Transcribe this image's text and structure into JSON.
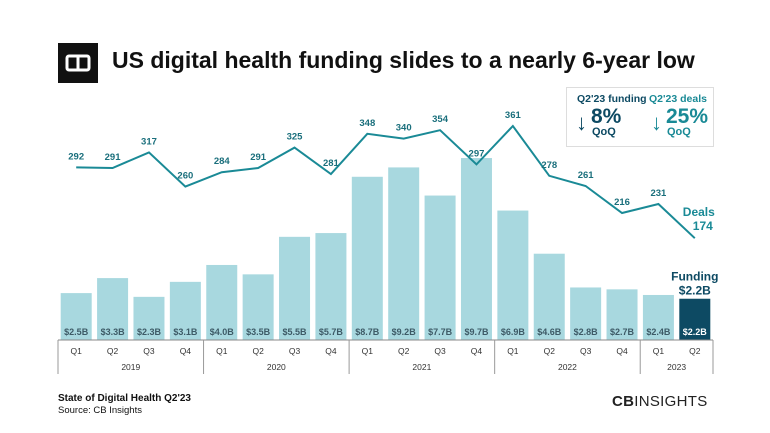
{
  "title": "US digital health funding slides to a nearly 6-year low",
  "kpis": {
    "funding": {
      "label": "Q2'23 funding",
      "value": "8%",
      "unit": "QoQ",
      "direction": "down",
      "color": "#0d4a63"
    },
    "deals": {
      "label": "Q2'23 deals",
      "value": "25%",
      "unit": "QoQ",
      "direction": "down",
      "color": "#1a8a96"
    }
  },
  "footer": {
    "report": "State of Digital Health Q2'23",
    "source": "Source: CB Insights",
    "brand_bold": "CB",
    "brand_rest": "INSIGHTS"
  },
  "chart_data": {
    "type": "bar+line",
    "categories": [
      "Q1",
      "Q2",
      "Q3",
      "Q4",
      "Q1",
      "Q2",
      "Q3",
      "Q4",
      "Q1",
      "Q2",
      "Q3",
      "Q4",
      "Q1",
      "Q2",
      "Q3",
      "Q4",
      "Q1",
      "Q2"
    ],
    "years": [
      {
        "label": "2019",
        "span": 4
      },
      {
        "label": "2020",
        "span": 4
      },
      {
        "label": "2021",
        "span": 4
      },
      {
        "label": "2022",
        "span": 4
      },
      {
        "label": "2023",
        "span": 2
      }
    ],
    "series": [
      {
        "name": "Funding",
        "type": "bar",
        "unit": "$B",
        "values": [
          2.5,
          3.3,
          2.3,
          3.1,
          4.0,
          3.5,
          5.5,
          5.7,
          8.7,
          9.2,
          7.7,
          9.7,
          6.9,
          4.6,
          2.8,
          2.7,
          2.4,
          2.2
        ],
        "labels": [
          "$2.5B",
          "$3.3B",
          "$2.3B",
          "$3.1B",
          "$4.0B",
          "$3.5B",
          "$5.5B",
          "$5.7B",
          "$8.7B",
          "$9.2B",
          "$7.7B",
          "$9.7B",
          "$6.9B",
          "$4.6B",
          "$2.8B",
          "$2.7B",
          "$2.4B",
          "$2.2B"
        ],
        "end_label": "Funding",
        "end_value": "$2.2B",
        "color": "#a8d8df",
        "highlight_color": "#0d4a63"
      },
      {
        "name": "Deals",
        "type": "line",
        "values": [
          292,
          291,
          317,
          260,
          284,
          291,
          325,
          281,
          348,
          340,
          354,
          297,
          361,
          278,
          261,
          216,
          231,
          174
        ],
        "end_label": "Deals",
        "end_value": "174",
        "color": "#1a8a96"
      }
    ],
    "grid": false,
    "legend": "none"
  }
}
